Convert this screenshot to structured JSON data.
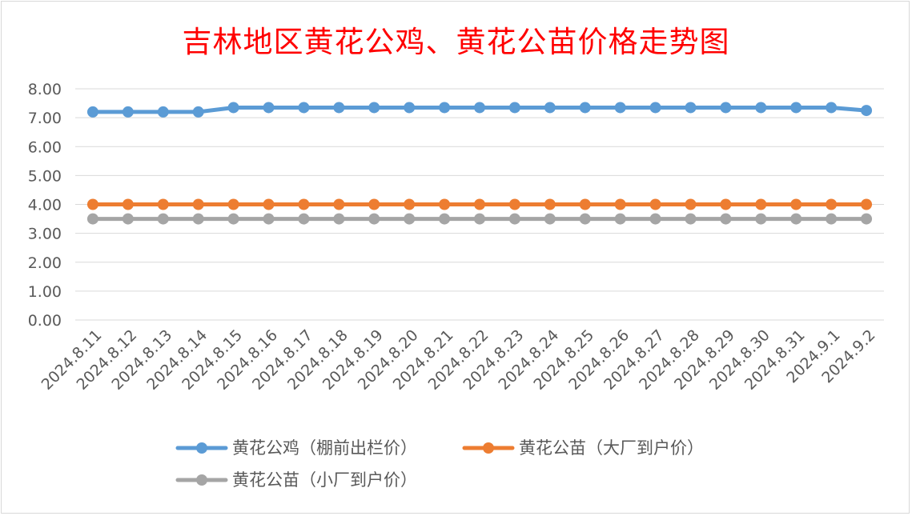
{
  "chart_data": {
    "type": "line",
    "title": "吉林地区黄花公鸡、黄花公苗价格走势图",
    "xlabel": "",
    "ylabel": "",
    "ylim": [
      0,
      8
    ],
    "yticks": [
      "0.00",
      "1.00",
      "2.00",
      "3.00",
      "4.00",
      "5.00",
      "6.00",
      "7.00",
      "8.00"
    ],
    "grid": true,
    "legend_position": "bottom",
    "categories": [
      "2024.8.11",
      "2024.8.12",
      "2024.8.13",
      "2024.8.14",
      "2024.8.15",
      "2024.8.16",
      "2024.8.17",
      "2024.8.18",
      "2024.8.19",
      "2024.8.20",
      "2024.8.21",
      "2024.8.22",
      "2024.8.23",
      "2024.8.24",
      "2024.8.25",
      "2024.8.26",
      "2024.8.27",
      "2024.8.28",
      "2024.8.29",
      "2024.8.30",
      "2024.8.31",
      "2024.9.1",
      "2024.9.2"
    ],
    "series": [
      {
        "name": "黄花公鸡（棚前出栏价）",
        "color": "#5b9bd5",
        "values": [
          7.2,
          7.2,
          7.2,
          7.2,
          7.35,
          7.35,
          7.35,
          7.35,
          7.35,
          7.35,
          7.35,
          7.35,
          7.35,
          7.35,
          7.35,
          7.35,
          7.35,
          7.35,
          7.35,
          7.35,
          7.35,
          7.35,
          7.25
        ]
      },
      {
        "name": "黄花公苗（大厂到户价）",
        "color": "#ed7d31",
        "values": [
          4.0,
          4.0,
          4.0,
          4.0,
          4.0,
          4.0,
          4.0,
          4.0,
          4.0,
          4.0,
          4.0,
          4.0,
          4.0,
          4.0,
          4.0,
          4.0,
          4.0,
          4.0,
          4.0,
          4.0,
          4.0,
          4.0,
          4.0
        ]
      },
      {
        "name": "黄花公苗（小厂到户价）",
        "color": "#a5a5a5",
        "values": [
          3.5,
          3.5,
          3.5,
          3.5,
          3.5,
          3.5,
          3.5,
          3.5,
          3.5,
          3.5,
          3.5,
          3.5,
          3.5,
          3.5,
          3.5,
          3.5,
          3.5,
          3.5,
          3.5,
          3.5,
          3.5,
          3.5,
          3.5
        ]
      }
    ]
  }
}
